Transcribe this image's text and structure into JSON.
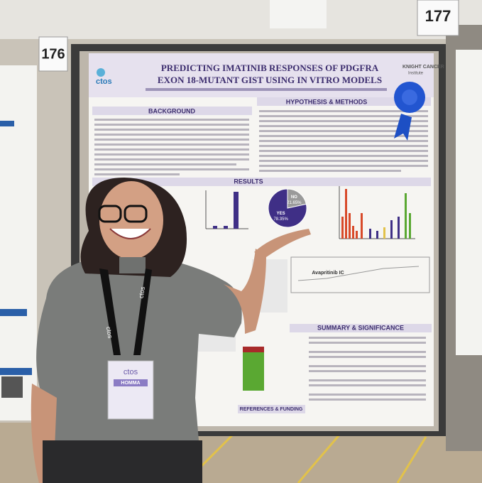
{
  "board_numbers": [
    "176",
    "177"
  ],
  "poster": {
    "title": [
      "PREDICTING IMATINIB RESPONSES OF PDGFRA",
      "EXON 18-MUTANT GIST USING IN VITRO MODELS"
    ],
    "sections": {
      "background": "BACKGROUND",
      "hypothesis": "HYPOTHESIS & METHODS",
      "results": "RESULTS",
      "summary": "SUMMARY & SIGNIFICANCE",
      "references": "REFERENCES & FUNDING"
    },
    "logos": {
      "left": "ctos",
      "right": "KNIGHT CANCER",
      "right_sub": "Institute"
    },
    "chart_label": "Avapritinib IC",
    "pie": {
      "labels": [
        "NO",
        "YES"
      ],
      "values": [
        21.65,
        78.35
      ],
      "value_labels": [
        "21.65%",
        "78.35%"
      ],
      "colors": [
        "#9a9a9a",
        "#3f2f86"
      ]
    }
  },
  "badge": {
    "logo": "ctos",
    "name": "HOMMA"
  },
  "lanyard": "ctos"
}
